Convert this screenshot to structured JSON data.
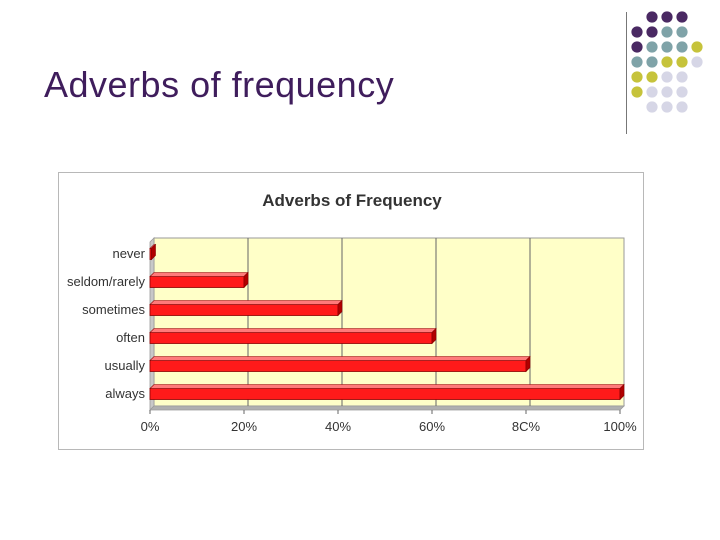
{
  "slide": {
    "title": "Adverbs of frequency"
  },
  "colors": {
    "title_color": "#3f1d5c",
    "bar_color": "#ff1a1a",
    "plot_background": "#ffffc8",
    "dot_purple": "#4a2963",
    "dot_teal": "#7fa3a8",
    "dot_olive": "#c6c33b",
    "dot_lavender": "#d6d6e6"
  },
  "chart_data": {
    "type": "bar",
    "orientation": "horizontal",
    "title": "Adverbs of Frequency",
    "xlabel": "",
    "ylabel": "",
    "categories": [
      "never",
      "seldom/rarely",
      "sometimes",
      "often",
      "usually",
      "always"
    ],
    "values": [
      0,
      20,
      40,
      60,
      80,
      100
    ],
    "xlim": [
      0,
      100
    ],
    "x_tick_labels": [
      "0%",
      "20%",
      "40%",
      "60%",
      "8C%",
      "100%"
    ],
    "grid": true,
    "legend": "none"
  }
}
